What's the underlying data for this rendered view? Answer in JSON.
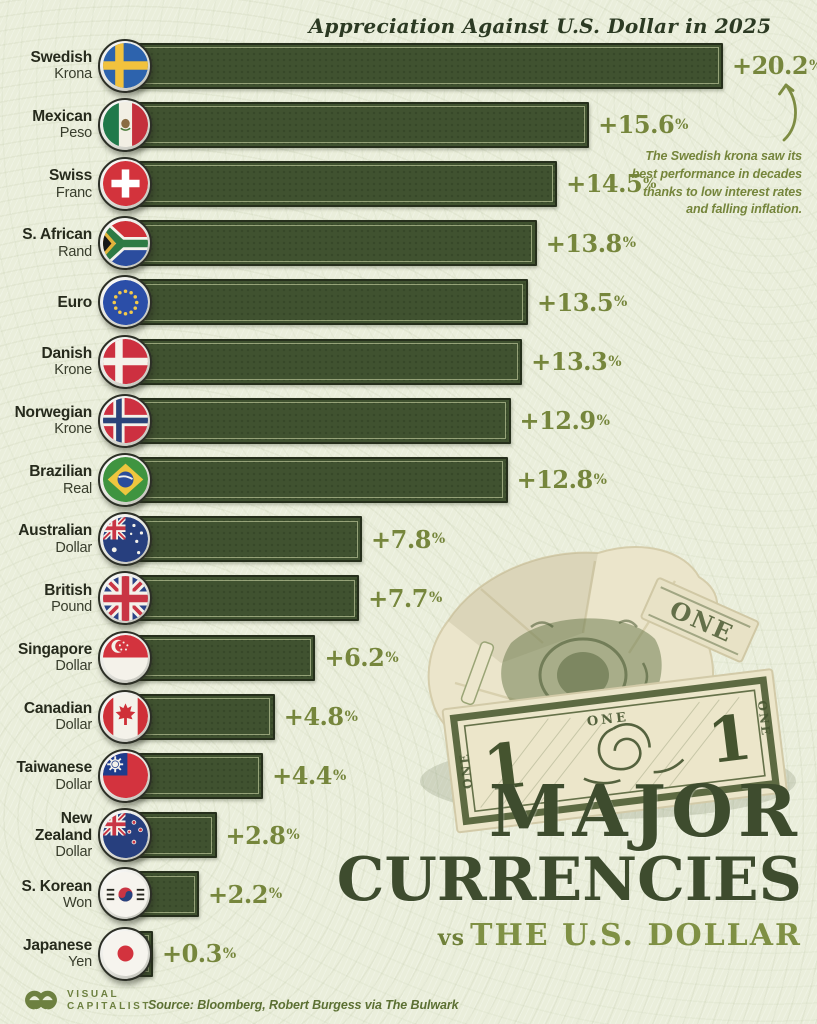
{
  "annotation": {
    "lines": [
      "The Swedish krona saw its",
      "best performance in decades",
      "thanks to low interest rates",
      "and falling inflation."
    ]
  },
  "headline": {
    "line1": "MAJOR",
    "line2": "CURRENCIES",
    "vs": "vs",
    "subject": "THE U.S. DOLLAR"
  },
  "footer": {
    "logo_line1": "VISUAL",
    "logo_line2": "CAPITALIST",
    "source": "Source: Bloomberg, Robert Burgess via The Bulwark"
  },
  "colors": {
    "background": "#eaeedb",
    "bar_fill": "#405230",
    "bar_border": "#262f1c",
    "bar_inner_line": "#d0dbaa",
    "value_text": "#76863c",
    "label_text": "#262a1c",
    "title_text": "#2c3a23",
    "headline_text": "#3e4c2e",
    "olive_accent": "#7f9044"
  },
  "chart_data": {
    "type": "bar",
    "orientation": "horizontal",
    "title": "Appreciation Against U.S. Dollar in 2025",
    "unit": "percent",
    "value_suffix": "%",
    "max_value": 20.2,
    "xlim": [
      0,
      20.2
    ],
    "series": [
      {
        "label_line1": "Swedish",
        "label_line2": "Krona",
        "flag": "sweden",
        "value": 20.2,
        "display": "+20.2"
      },
      {
        "label_line1": "Mexican",
        "label_line2": "Peso",
        "flag": "mexico",
        "value": 15.6,
        "display": "+15.6"
      },
      {
        "label_line1": "Swiss",
        "label_line2": "Franc",
        "flag": "switzerland",
        "value": 14.5,
        "display": "+14.5"
      },
      {
        "label_line1": "S. African",
        "label_line2": "Rand",
        "flag": "south-africa",
        "value": 13.8,
        "display": "+13.8"
      },
      {
        "label_line1": "Euro",
        "label_line2": "",
        "flag": "eu",
        "value": 13.5,
        "display": "+13.5"
      },
      {
        "label_line1": "Danish",
        "label_line2": "Krone",
        "flag": "denmark",
        "value": 13.3,
        "display": "+13.3"
      },
      {
        "label_line1": "Norwegian",
        "label_line2": "Krone",
        "flag": "norway",
        "value": 12.9,
        "display": "+12.9"
      },
      {
        "label_line1": "Brazilian",
        "label_line2": "Real",
        "flag": "brazil",
        "value": 12.8,
        "display": "+12.8"
      },
      {
        "label_line1": "Australian",
        "label_line2": "Dollar",
        "flag": "australia",
        "value": 7.8,
        "display": "+7.8"
      },
      {
        "label_line1": "British",
        "label_line2": "Pound",
        "flag": "uk",
        "value": 7.7,
        "display": "+7.7"
      },
      {
        "label_line1": "Singapore",
        "label_line2": "Dollar",
        "flag": "singapore",
        "value": 6.2,
        "display": "+6.2"
      },
      {
        "label_line1": "Canadian",
        "label_line2": "Dollar",
        "flag": "canada",
        "value": 4.8,
        "display": "+4.8"
      },
      {
        "label_line1": "Taiwanese",
        "label_line2": "Dollar",
        "flag": "taiwan",
        "value": 4.4,
        "display": "+4.4"
      },
      {
        "label_line1": "New Zealand",
        "label_line2": "Dollar",
        "flag": "new-zealand",
        "value": 2.8,
        "display": "+2.8"
      },
      {
        "label_line1": "S. Korean",
        "label_line2": "Won",
        "flag": "south-korea",
        "value": 2.2,
        "display": "+2.2"
      },
      {
        "label_line1": "Japanese",
        "label_line2": "Yen",
        "flag": "japan",
        "value": 0.3,
        "display": "+0.3"
      }
    ]
  }
}
